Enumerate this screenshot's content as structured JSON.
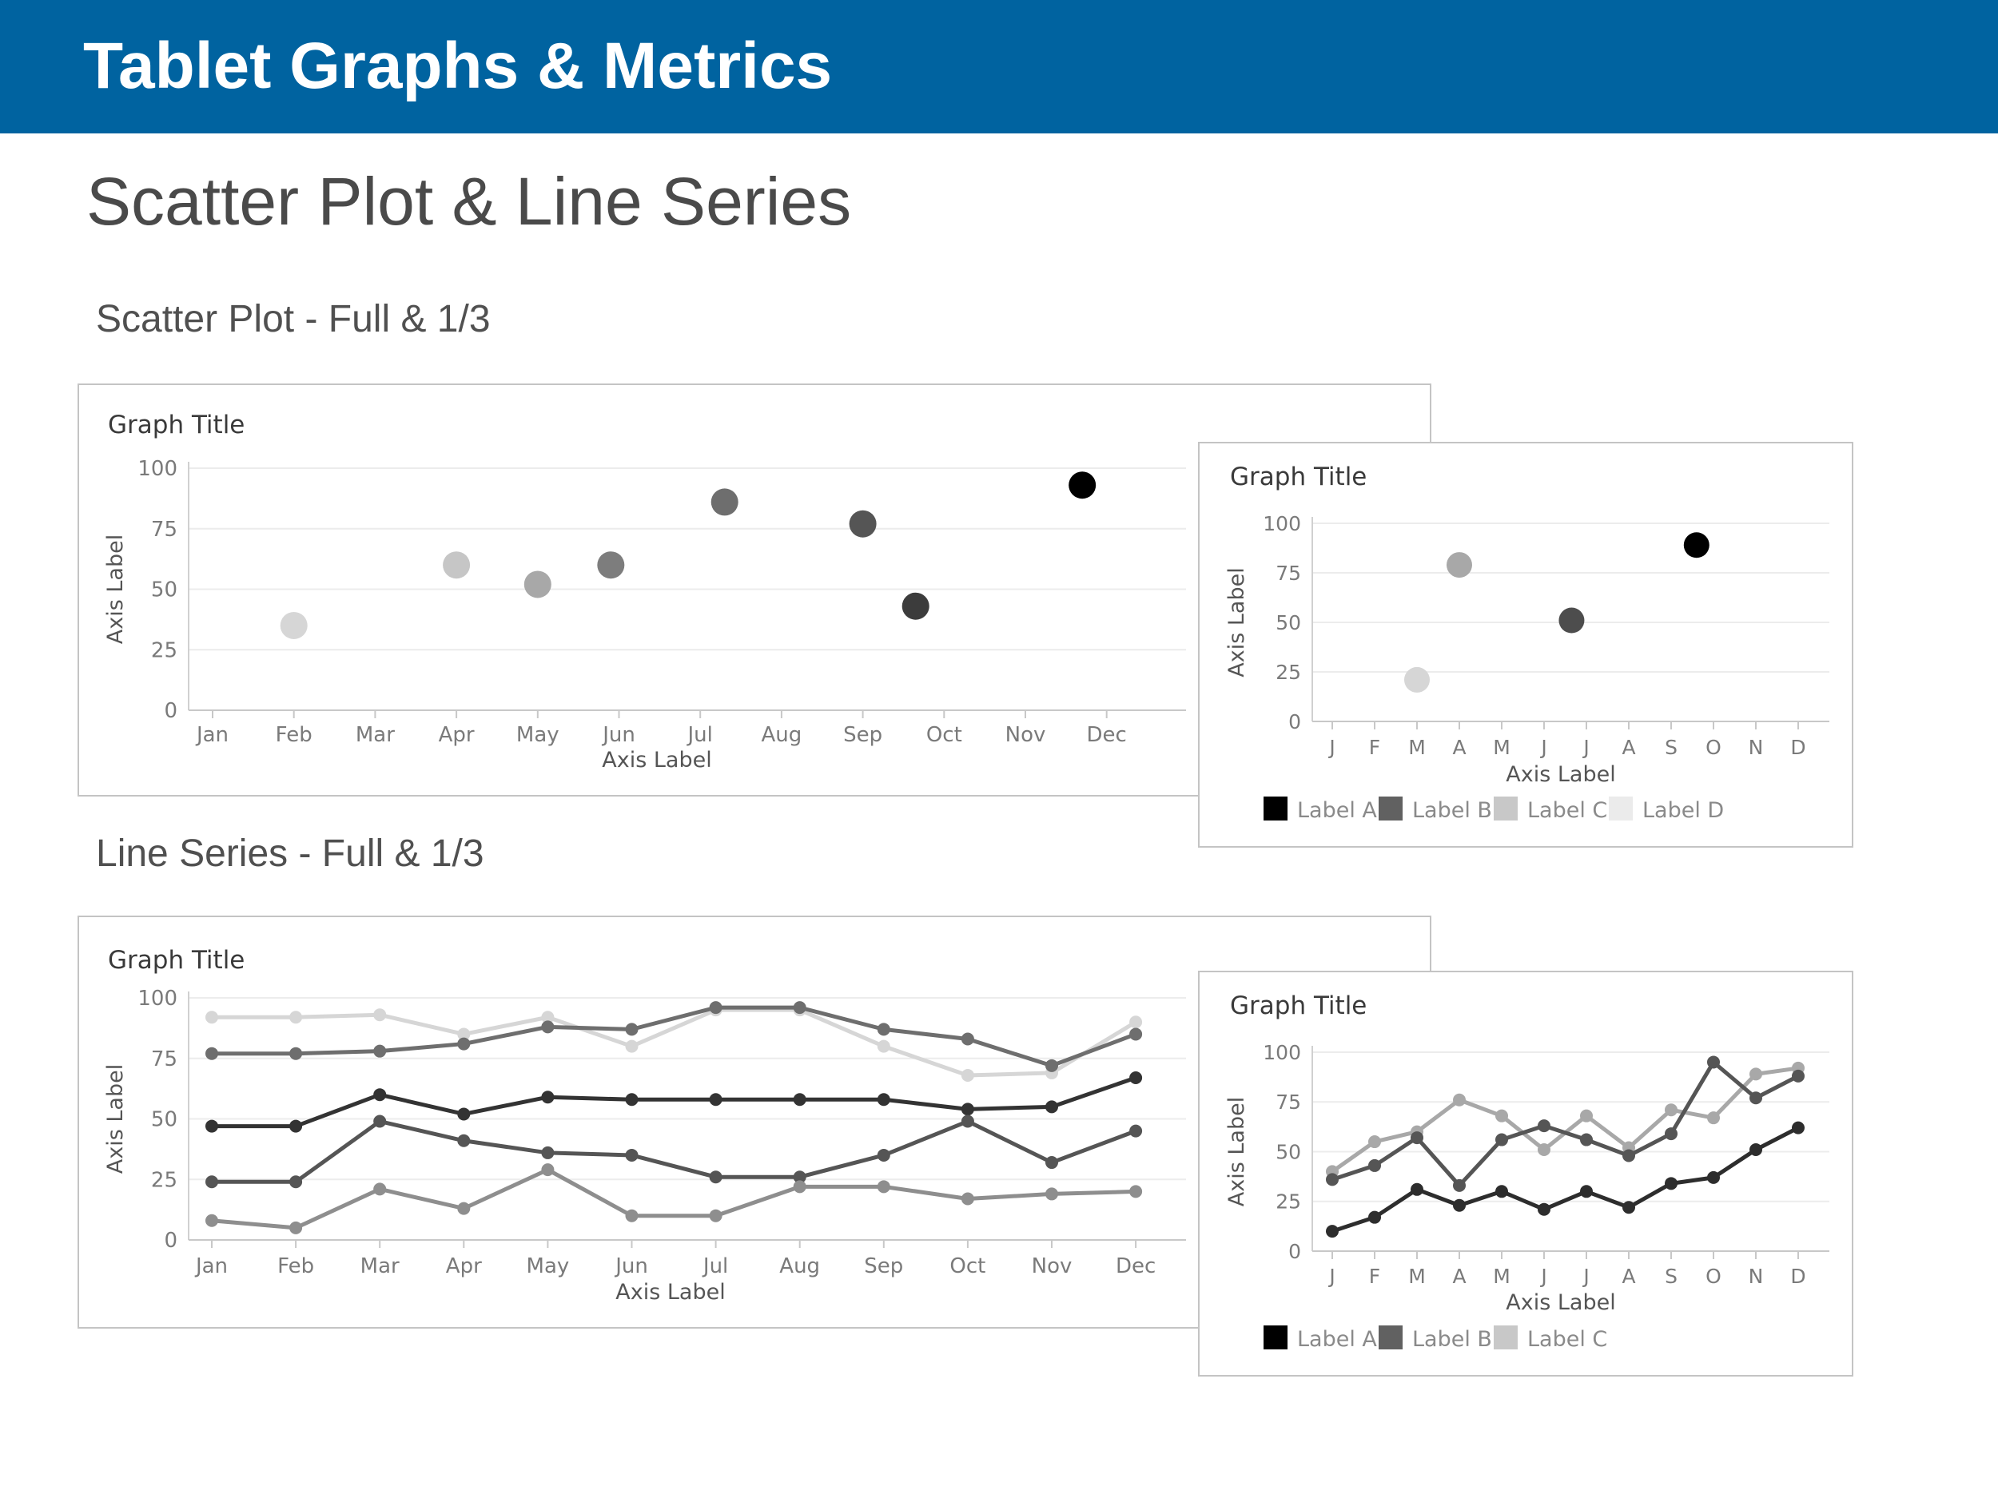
{
  "header": {
    "title": "Tablet Graphs & Metrics"
  },
  "section": {
    "title": "Scatter Plot & Line Series"
  },
  "subsections": {
    "scatter": "Scatter Plot - Full & 1/3",
    "line": "Line Series - Full & 1/3"
  },
  "colors": {
    "header": "#0063a0",
    "label_a": "#000000",
    "label_b": "#616161",
    "label_c": "#c8c8c8",
    "label_d": "#ebebeb"
  },
  "chart_data": [
    {
      "type": "scatter",
      "title": "Graph Title",
      "xlabel": "Axis Label",
      "ylabel": "Axis Label",
      "categories": [
        "Jan",
        "Feb",
        "Mar",
        "Apr",
        "May",
        "Jun",
        "Jul",
        "Aug",
        "Sep",
        "Oct",
        "Nov",
        "Dec"
      ],
      "ylim": [
        0,
        100
      ],
      "yticks": [
        0,
        25,
        50,
        75,
        100
      ],
      "grid": true,
      "points": [
        {
          "x": 2,
          "y": 35,
          "color": "#d6d6d6"
        },
        {
          "x": 4,
          "y": 60,
          "color": "#c6c6c6"
        },
        {
          "x": 5,
          "y": 52,
          "color": "#a8a8a8"
        },
        {
          "x": 5.9,
          "y": 60,
          "color": "#7d7d7d"
        },
        {
          "x": 7.3,
          "y": 86,
          "color": "#6e6e6e"
        },
        {
          "x": 9,
          "y": 77,
          "color": "#555555"
        },
        {
          "x": 9.65,
          "y": 43,
          "color": "#3c3c3c"
        },
        {
          "x": 11.7,
          "y": 93,
          "color": "#000000"
        }
      ]
    },
    {
      "type": "scatter",
      "title": "Graph Title",
      "xlabel": "Axis Label",
      "ylabel": "Axis Label",
      "categories": [
        "J",
        "F",
        "M",
        "A",
        "M",
        "J",
        "J",
        "A",
        "S",
        "O",
        "N",
        "D"
      ],
      "ylim": [
        0,
        100
      ],
      "yticks": [
        0,
        25,
        50,
        75,
        100
      ],
      "grid": true,
      "legend": [
        {
          "label": "Label A",
          "color": "#000000"
        },
        {
          "label": "Label B",
          "color": "#616161"
        },
        {
          "label": "Label C",
          "color": "#c8c8c8"
        },
        {
          "label": "Label D",
          "color": "#ebebeb"
        }
      ],
      "points": [
        {
          "x": 3,
          "y": 21,
          "color": "#d6d6d6"
        },
        {
          "x": 4,
          "y": 79,
          "color": "#a8a8a8"
        },
        {
          "x": 6.65,
          "y": 51,
          "color": "#4d4d4d"
        },
        {
          "x": 9.6,
          "y": 89,
          "color": "#000000"
        }
      ]
    },
    {
      "type": "line",
      "title": "Graph Title",
      "xlabel": "Axis Label",
      "ylabel": "Axis Label",
      "categories": [
        "Jan",
        "Feb",
        "Mar",
        "Apr",
        "May",
        "Jun",
        "Jul",
        "Aug",
        "Sep",
        "Oct",
        "Nov",
        "Dec"
      ],
      "ylim": [
        0,
        100
      ],
      "yticks": [
        0,
        25,
        50,
        75,
        100
      ],
      "grid": true,
      "series": [
        {
          "color": "#d6d6d6",
          "values": [
            92,
            92,
            93,
            85,
            92,
            80,
            95,
            95,
            80,
            68,
            69,
            90
          ]
        },
        {
          "color": "#6e6e6e",
          "values": [
            77,
            77,
            78,
            81,
            88,
            87,
            96,
            96,
            87,
            83,
            72,
            85
          ]
        },
        {
          "color": "#333333",
          "values": [
            47,
            47,
            60,
            52,
            59,
            58,
            58,
            58,
            58,
            54,
            55,
            67
          ]
        },
        {
          "color": "#555555",
          "values": [
            24,
            24,
            49,
            41,
            36,
            35,
            26,
            26,
            35,
            49,
            32,
            45
          ]
        },
        {
          "color": "#8e8e8e",
          "values": [
            8,
            5,
            21,
            13,
            29,
            10,
            10,
            22,
            22,
            17,
            19,
            20
          ]
        }
      ]
    },
    {
      "type": "line",
      "title": "Graph Title",
      "xlabel": "Axis Label",
      "ylabel": "Axis Label",
      "categories": [
        "J",
        "F",
        "M",
        "A",
        "M",
        "J",
        "J",
        "A",
        "S",
        "O",
        "N",
        "D"
      ],
      "ylim": [
        0,
        100
      ],
      "yticks": [
        0,
        25,
        50,
        75,
        100
      ],
      "grid": true,
      "legend": [
        {
          "label": "Label A",
          "color": "#000000"
        },
        {
          "label": "Label B",
          "color": "#616161"
        },
        {
          "label": "Label C",
          "color": "#c8c8c8"
        }
      ],
      "series": [
        {
          "color": "#a8a8a8",
          "values": [
            40,
            55,
            60,
            76,
            68,
            51,
            68,
            52,
            71,
            67,
            89,
            92
          ]
        },
        {
          "color": "#555555",
          "values": [
            36,
            43,
            57,
            33,
            56,
            63,
            56,
            48,
            59,
            95,
            77,
            88
          ]
        },
        {
          "color": "#2d2d2d",
          "values": [
            10,
            17,
            31,
            23,
            30,
            21,
            30,
            22,
            34,
            37,
            51,
            62
          ]
        }
      ]
    }
  ]
}
